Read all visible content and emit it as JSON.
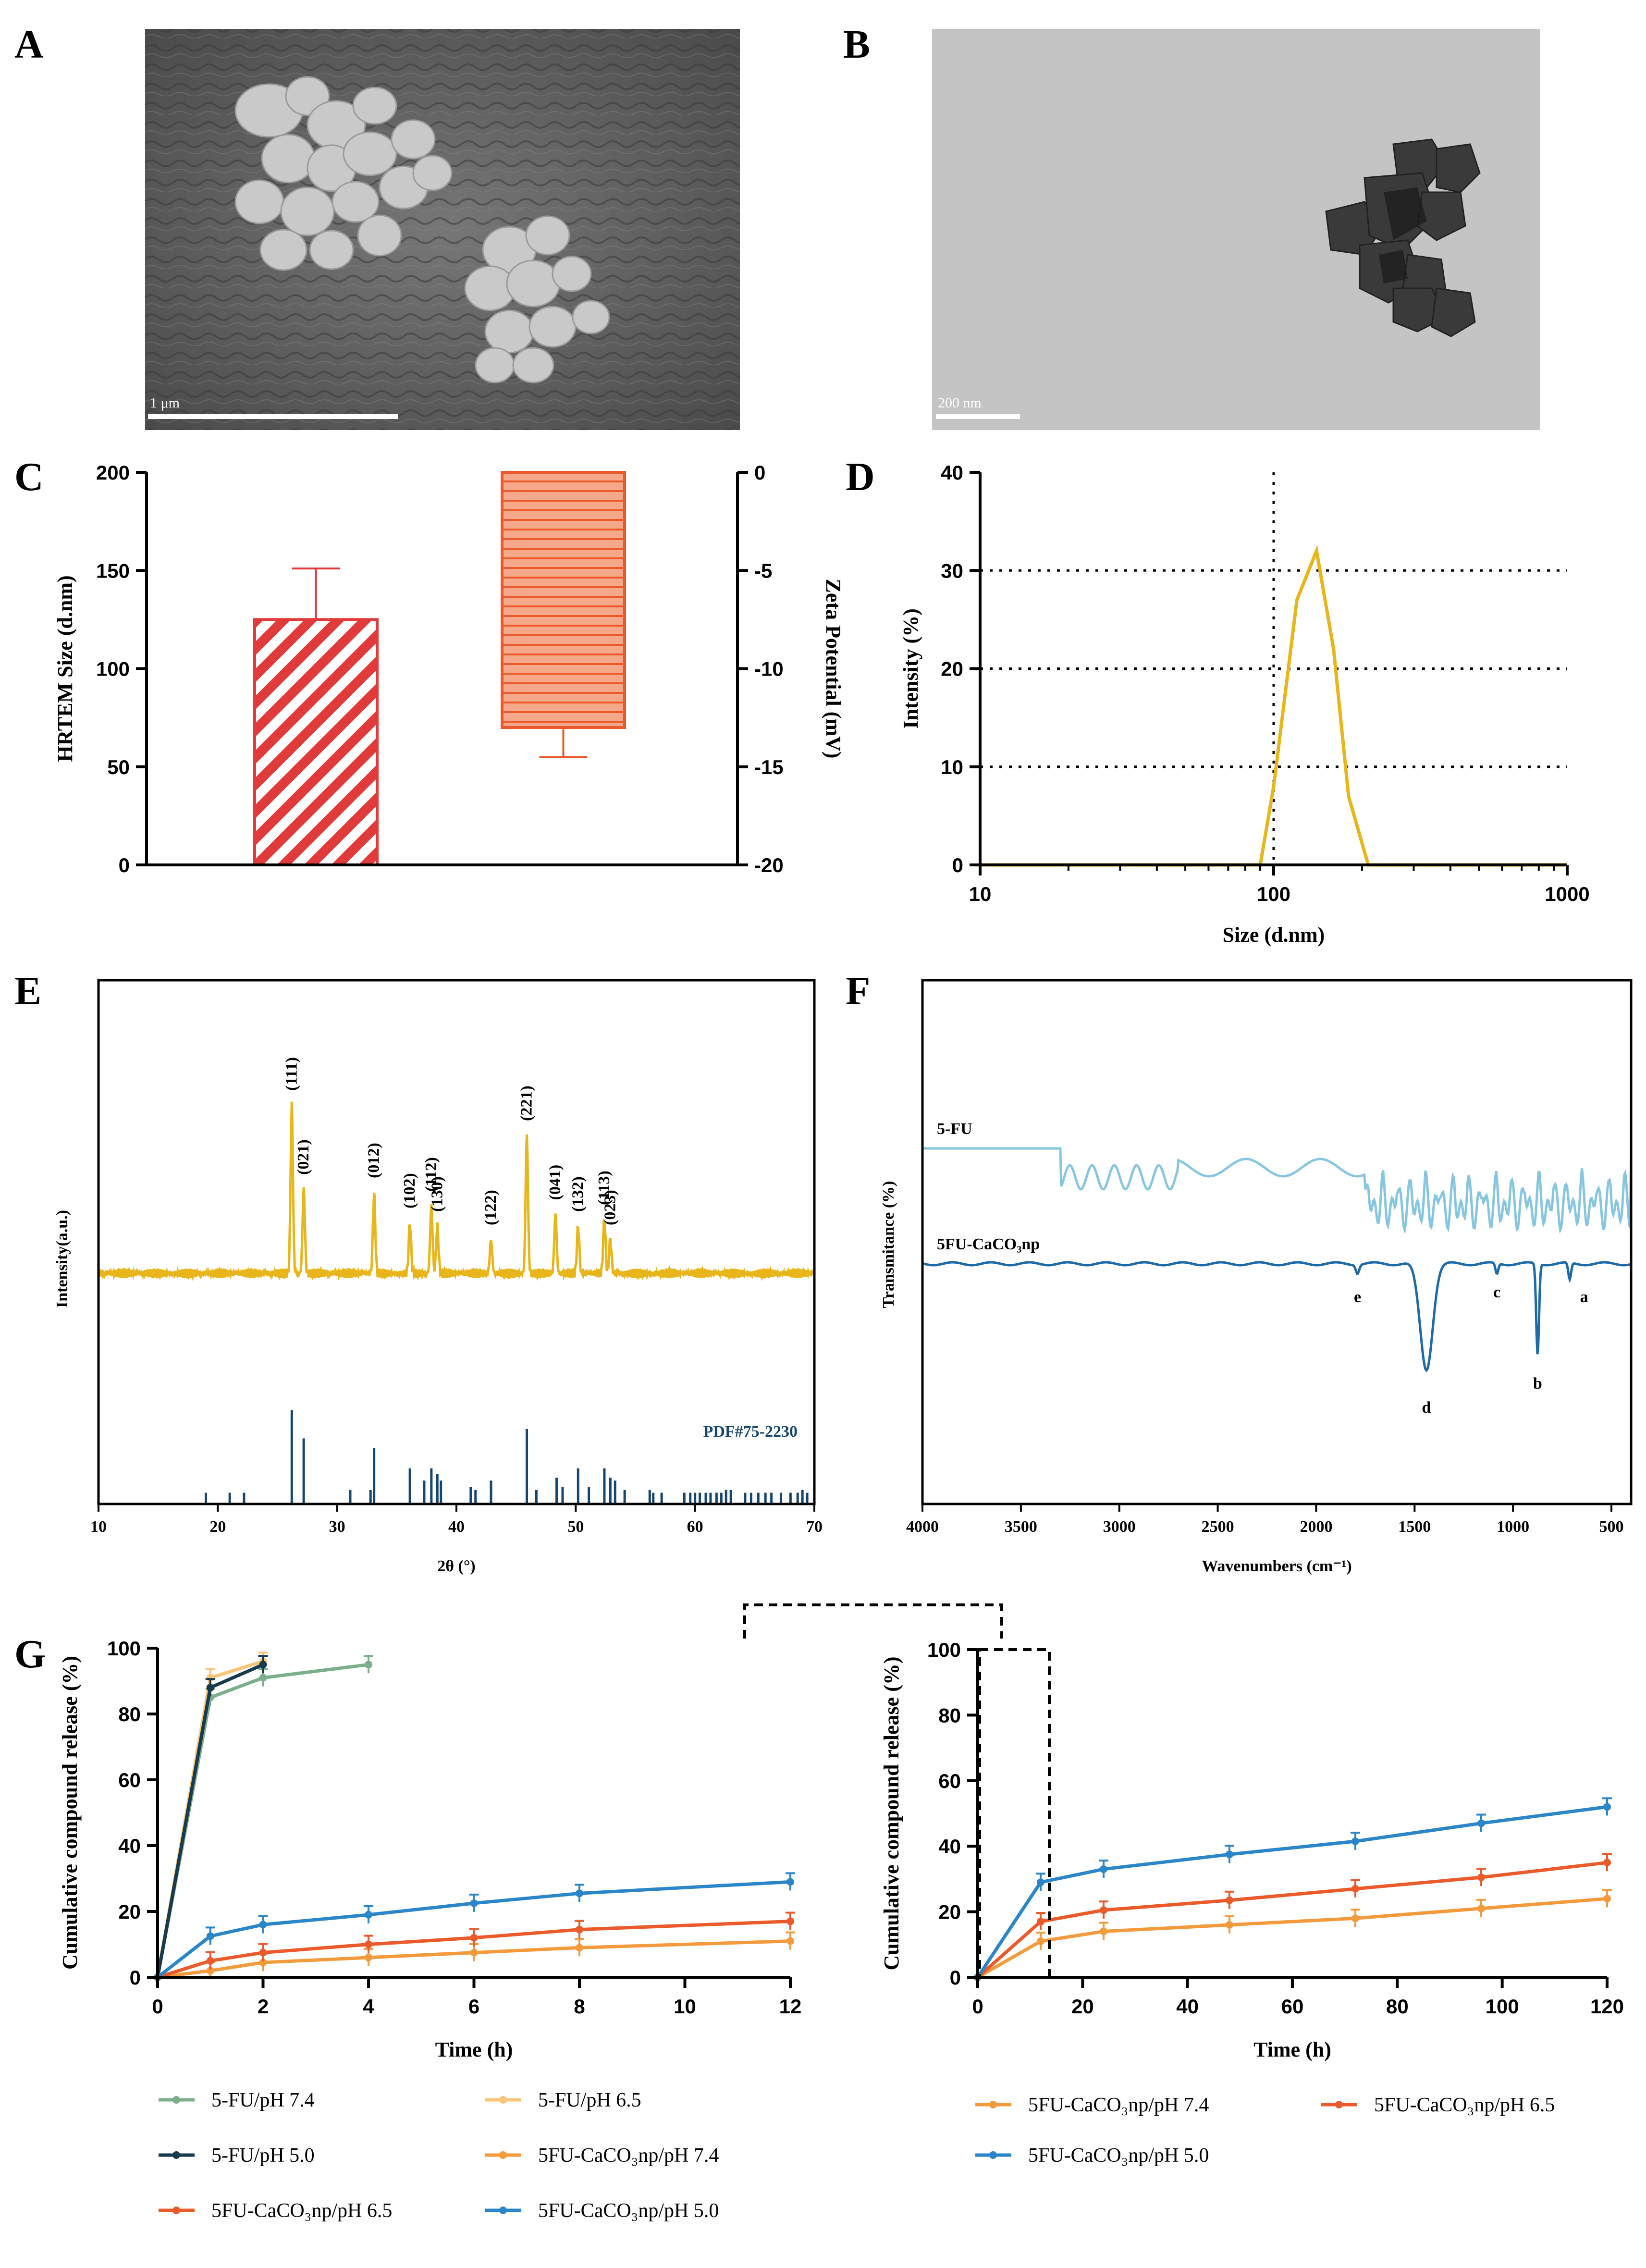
{
  "panels": {
    "A": {
      "label": "A",
      "scale": "1 μm"
    },
    "B": {
      "label": "B",
      "scale": "200 nm"
    },
    "C": {
      "label": "C"
    },
    "D": {
      "label": "D"
    },
    "E": {
      "label": "E"
    },
    "F": {
      "label": "F"
    },
    "G": {
      "label": "G"
    }
  },
  "colors": {
    "yellow": "#e8b51a",
    "red": "#e03a3a",
    "orange_red": "#ea5a2a",
    "salmon": "#f6a98a",
    "green": "#7aaf8a",
    "light_orange": "#f7c47a",
    "dark_navy": "#173a4f",
    "orange": "#f39a3c",
    "blue": "#2a86c8",
    "ftir_light": "#86c6e0",
    "ftir_dark": "#1c6aa8",
    "xrd_ref": "#14466e"
  },
  "chart_data": [
    {
      "id": "C",
      "type": "bar",
      "categories": [
        "HRTEM Size",
        "Zeta Potential"
      ],
      "series": [
        {
          "name": "HRTEM Size (d.nm)",
          "axis": "left",
          "value": 125,
          "error": 26
        },
        {
          "name": "Zeta Potential (mV)",
          "axis": "right",
          "value": -13,
          "error": 1.5
        }
      ],
      "ylabel_left": "HRTEM Size (d.nm)",
      "ylim_left": [
        0,
        200
      ],
      "yticks_left": [
        "0",
        "50",
        "100",
        "150",
        "200"
      ],
      "ylabel_right": "Zeta Potential (mV)",
      "ylim_right": [
        -20,
        0
      ],
      "yticks_right": [
        "0",
        "-5",
        "-10",
        "-15",
        "-20"
      ]
    },
    {
      "id": "D",
      "type": "line",
      "x": [
        10,
        90,
        100,
        120,
        140,
        160,
        180,
        210,
        1000
      ],
      "y": [
        0,
        0,
        8,
        27,
        32,
        22,
        7,
        0,
        0
      ],
      "xscale": "log",
      "xlabel": "Size (d.nm)",
      "ylabel": "Intensity (%)",
      "xlim": [
        10,
        1000
      ],
      "ylim": [
        0,
        40
      ],
      "xticks": [
        "10",
        "100",
        "1000"
      ],
      "yticks": [
        "0",
        "10",
        "20",
        "30",
        "40"
      ],
      "gridlines_y": [
        10,
        20,
        30
      ],
      "vline_x": 100
    },
    {
      "id": "E",
      "type": "line",
      "xlabel": "2θ (°)",
      "ylabel": "Intensity(a.u.)",
      "xlim": [
        10,
        70
      ],
      "xticks": [
        "10",
        "20",
        "30",
        "40",
        "50",
        "60",
        "70"
      ],
      "peaks": [
        {
          "x": 26.2,
          "h": 100,
          "label": "(111)"
        },
        {
          "x": 27.2,
          "h": 50,
          "label": "(021)"
        },
        {
          "x": 33.1,
          "h": 48,
          "label": "(012)"
        },
        {
          "x": 36.1,
          "h": 30,
          "label": "(102)"
        },
        {
          "x": 37.9,
          "h": 40,
          "label": "(112)"
        },
        {
          "x": 38.4,
          "h": 28,
          "label": "(130)"
        },
        {
          "x": 42.9,
          "h": 20,
          "label": "(122)"
        },
        {
          "x": 45.9,
          "h": 82,
          "label": "(221)"
        },
        {
          "x": 48.3,
          "h": 35,
          "label": "(041)"
        },
        {
          "x": 50.2,
          "h": 28,
          "label": "(132)"
        },
        {
          "x": 52.4,
          "h": 32,
          "label": "(113)"
        },
        {
          "x": 52.9,
          "h": 20,
          "label": "(023)"
        }
      ],
      "reference": {
        "name": "PDF#75-2230",
        "x": [
          19,
          21,
          22.2,
          26.2,
          27.2,
          31.1,
          32.8,
          33.1,
          36.1,
          37.3,
          37.9,
          38.4,
          38.7,
          41.2,
          41.6,
          42.9,
          45.9,
          46.7,
          48.4,
          48.9,
          50.2,
          51.1,
          52.4,
          52.9,
          53.3,
          54.1,
          56.2,
          56.5,
          57.2,
          59.1,
          59.6,
          60,
          60.4,
          60.9,
          61.3,
          61.8,
          62.2,
          62.6,
          63,
          64.2,
          64.7,
          65.3,
          65.9,
          66.4,
          67.2,
          68,
          68.6,
          69,
          69.4
        ],
        "h": [
          12,
          12,
          12,
          100,
          70,
          15,
          15,
          60,
          38,
          25,
          38,
          32,
          25,
          18,
          15,
          25,
          80,
          15,
          28,
          18,
          38,
          18,
          38,
          28,
          25,
          15,
          15,
          12,
          12,
          12,
          12,
          12,
          12,
          12,
          12,
          12,
          12,
          15,
          15,
          12,
          12,
          12,
          12,
          12,
          12,
          12,
          12,
          15,
          12
        ]
      }
    },
    {
      "id": "F",
      "type": "line",
      "xlabel": "Wavenumbers (cm⁻¹)",
      "ylabel": "Transmitance (%)",
      "xlim": [
        4000,
        400
      ],
      "xticks": [
        "4000",
        "3500",
        "3000",
        "2500",
        "2000",
        "1500",
        "1000",
        "500"
      ],
      "series": [
        {
          "name": "5-FU"
        },
        {
          "name": "5FU-CaCO₃np"
        }
      ],
      "annotations": [
        {
          "label": "a",
          "x": 712
        },
        {
          "label": "b",
          "x": 875
        },
        {
          "label": "c",
          "x": 1082
        },
        {
          "label": "d",
          "x": 1440
        },
        {
          "label": "e",
          "x": 1790
        }
      ]
    },
    {
      "id": "G-left",
      "type": "line",
      "xlabel": "Time (h)",
      "ylabel": "Cumulative compound release (%)",
      "xlim": [
        0,
        12
      ],
      "ylim": [
        0,
        100
      ],
      "xticks": [
        "0",
        "2",
        "4",
        "6",
        "8",
        "10",
        "12"
      ],
      "yticks": [
        "0",
        "20",
        "40",
        "60",
        "80",
        "100"
      ],
      "series": [
        {
          "name": "5-FU/pH 7.4",
          "x": [
            0,
            1,
            2,
            4
          ],
          "y": [
            0,
            85,
            91,
            95
          ]
        },
        {
          "name": "5-FU/pH 6.5",
          "x": [
            0,
            1,
            2
          ],
          "y": [
            0,
            91,
            96
          ]
        },
        {
          "name": "5-FU/pH 5.0",
          "x": [
            0,
            1,
            2
          ],
          "y": [
            0,
            88,
            95
          ]
        },
        {
          "name": "5FU-CaCO₃np/pH 7.4",
          "x": [
            0,
            1,
            2,
            4,
            6,
            8,
            12
          ],
          "y": [
            0,
            2,
            4.5,
            6,
            7.5,
            9,
            11
          ]
        },
        {
          "name": "5FU-CaCO₃np/pH 6.5",
          "x": [
            0,
            1,
            2,
            4,
            6,
            8,
            12
          ],
          "y": [
            0,
            5,
            7.5,
            10,
            12,
            14.5,
            17
          ]
        },
        {
          "name": "5FU-CaCO₃np/pH 5.0",
          "x": [
            0,
            1,
            2,
            4,
            6,
            8,
            12
          ],
          "y": [
            0,
            12.5,
            16,
            19,
            22.5,
            25.5,
            29
          ]
        }
      ]
    },
    {
      "id": "G-right",
      "type": "line",
      "xlabel": "Time (h)",
      "ylabel": "Cumulative compound release (%)",
      "xlim": [
        0,
        120
      ],
      "ylim": [
        0,
        100
      ],
      "xticks": [
        "0",
        "20",
        "40",
        "60",
        "80",
        "100",
        "120"
      ],
      "yticks": [
        "0",
        "20",
        "40",
        "60",
        "80",
        "100"
      ],
      "series": [
        {
          "name": "5FU-CaCO₃np/pH 7.4",
          "x": [
            0,
            12,
            24,
            48,
            72,
            96,
            120
          ],
          "y": [
            0,
            11,
            14,
            16,
            18,
            21,
            24
          ]
        },
        {
          "name": "5FU-CaCO₃np/pH 6.5",
          "x": [
            0,
            12,
            24,
            48,
            72,
            96,
            120
          ],
          "y": [
            0,
            17,
            20.5,
            23.5,
            27,
            30.5,
            35
          ]
        },
        {
          "name": "5FU-CaCO₃np/pH 5.0",
          "x": [
            0,
            12,
            24,
            48,
            72,
            96,
            120
          ],
          "y": [
            0,
            29,
            33,
            37.5,
            41.5,
            47,
            52
          ]
        }
      ]
    }
  ],
  "legend_left": [
    "5-FU/pH 7.4",
    "5-FU/pH 6.5",
    "5-FU/pH 5.0",
    "5FU-CaCO₃np/pH 7.4",
    "5FU-CaCO₃np/pH 6.5",
    "5FU-CaCO₃np/pH 5.0"
  ],
  "legend_right": [
    "5FU-CaCO₃np/pH 7.4",
    "5FU-CaCO₃np/pH 6.5",
    "5FU-CaCO₃np/pH 5.0"
  ]
}
